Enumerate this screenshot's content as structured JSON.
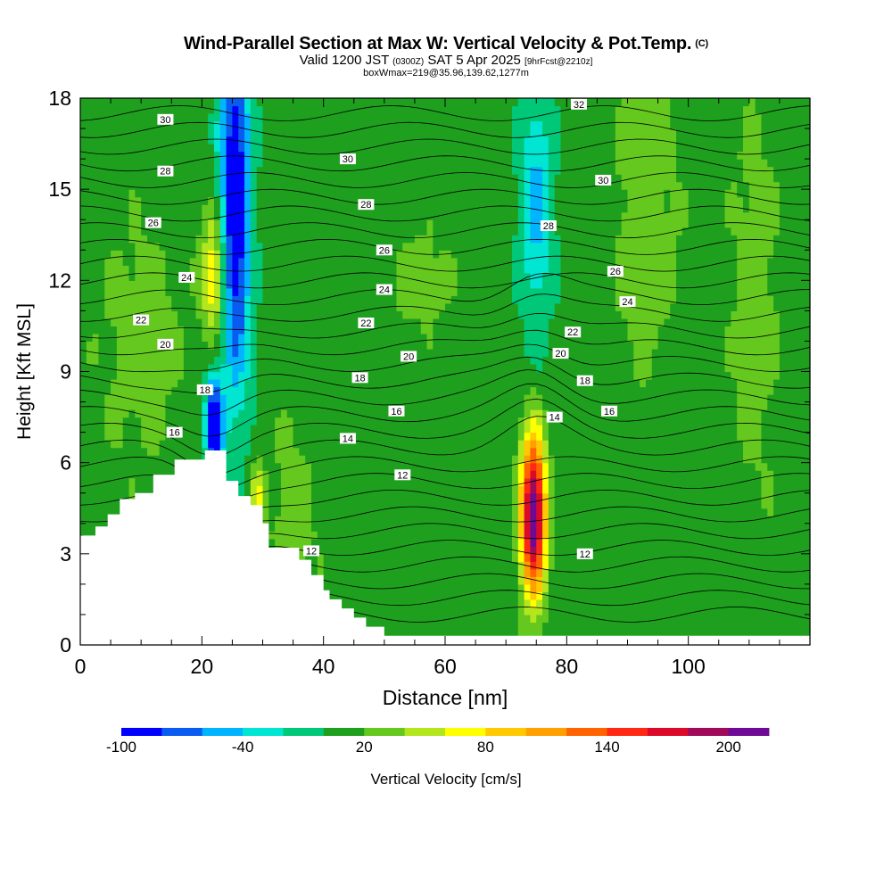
{
  "title": {
    "main": "Wind-Parallel Section at Max W: Vertical Velocity & Pot.Temp.",
    "copyright": "(C)",
    "valid_prefix": "Valid 1200 JST",
    "valid_utc": "(0300Z)",
    "valid_date": "SAT 5 Apr 2025",
    "forecast": "[9hrFcst@2210z]",
    "box_info": "boxWmax=219@35.96,139.62,1277m"
  },
  "chart_data": {
    "type": "heatmap",
    "xlabel": "Distance [nm]",
    "ylabel": "Height [Kft MSL]",
    "xlim": [
      0,
      120
    ],
    "ylim": [
      0,
      18
    ],
    "x_ticks": [
      0,
      20,
      40,
      60,
      80,
      100
    ],
    "y_ticks": [
      0,
      3,
      6,
      9,
      12,
      15,
      18
    ],
    "colorbar": {
      "title": "Vertical Velocity [cm/s]",
      "labels": [
        "-100",
        "-40",
        "20",
        "80",
        "140",
        "200"
      ],
      "label_values": [
        -100,
        -40,
        20,
        80,
        140,
        200
      ],
      "range": [
        -100,
        220
      ],
      "colors": [
        "#0000ff",
        "#0a5cf0",
        "#00b4ff",
        "#00e6d2",
        "#00c878",
        "#1ea01e",
        "#64c81e",
        "#b4e61e",
        "#ffff00",
        "#ffc800",
        "#ffa000",
        "#ff6400",
        "#ff2814",
        "#dc0a28",
        "#a00a5a",
        "#6e0a96"
      ]
    },
    "background_value": 10,
    "velocity_features": [
      {
        "x": 25.5,
        "y": 14.5,
        "sx": 1.8,
        "sy": 4.5,
        "value": -110
      },
      {
        "x": 22,
        "y": 7.2,
        "sx": 1.0,
        "sy": 1.2,
        "value": -110
      },
      {
        "x": 22,
        "y": 12.2,
        "sx": 1.4,
        "sy": 1.5,
        "value": 85
      },
      {
        "x": 74.5,
        "y": 4.3,
        "sx": 1.4,
        "sy": 1.8,
        "value": 225
      },
      {
        "x": 75,
        "y": 14.5,
        "sx": 2.0,
        "sy": 3.0,
        "value": -45
      },
      {
        "x": 93,
        "y": 14,
        "sx": 4,
        "sy": 4,
        "value": 32
      },
      {
        "x": 10,
        "y": 10,
        "sx": 5,
        "sy": 3,
        "value": 30
      },
      {
        "x": 35,
        "y": 4,
        "sx": 3,
        "sy": 2.5,
        "value": 30
      },
      {
        "x": 56,
        "y": 12,
        "sx": 4,
        "sy": 1.3,
        "value": 28
      },
      {
        "x": 111,
        "y": 11.5,
        "sx": 3,
        "sy": 5,
        "value": 30
      },
      {
        "x": 29,
        "y": 4.9,
        "sx": 0.7,
        "sy": 0.7,
        "value": 70
      }
    ],
    "terrain": [
      [
        0,
        3.6
      ],
      [
        2.5,
        3.6
      ],
      [
        2.5,
        3.9
      ],
      [
        4.5,
        3.9
      ],
      [
        4.5,
        4.3
      ],
      [
        6.5,
        4.3
      ],
      [
        6.5,
        4.8
      ],
      [
        9,
        4.8
      ],
      [
        9,
        5.0
      ],
      [
        12,
        5.0
      ],
      [
        12,
        5.6
      ],
      [
        15.5,
        5.6
      ],
      [
        15.5,
        6.1
      ],
      [
        20.5,
        6.1
      ],
      [
        20.5,
        6.4
      ],
      [
        24,
        6.4
      ],
      [
        24,
        5.4
      ],
      [
        26,
        5.4
      ],
      [
        26,
        4.9
      ],
      [
        28,
        4.9
      ],
      [
        28,
        4.6
      ],
      [
        30,
        4.6
      ],
      [
        30,
        4.0
      ],
      [
        31,
        4.0
      ],
      [
        31,
        3.2
      ],
      [
        36,
        3.2
      ],
      [
        36,
        2.8
      ],
      [
        38,
        2.8
      ],
      [
        38,
        2.3
      ],
      [
        40,
        2.3
      ],
      [
        40,
        1.8
      ],
      [
        41,
        1.8
      ],
      [
        41,
        1.5
      ],
      [
        43,
        1.5
      ],
      [
        43,
        1.2
      ],
      [
        45,
        1.2
      ],
      [
        45,
        0.9
      ],
      [
        47,
        0.9
      ],
      [
        47,
        0.6
      ],
      [
        50,
        0.6
      ],
      [
        50,
        0.3
      ],
      [
        52,
        0.3
      ],
      [
        52,
        0.3
      ],
      [
        120,
        0.3
      ]
    ],
    "theta_contour_labels": [
      {
        "x": 14,
        "y": 17.3,
        "text": "30"
      },
      {
        "x": 14,
        "y": 15.6,
        "text": "28"
      },
      {
        "x": 12,
        "y": 13.9,
        "text": "26"
      },
      {
        "x": 17.5,
        "y": 12.1,
        "text": "24"
      },
      {
        "x": 10,
        "y": 10.7,
        "text": "22"
      },
      {
        "x": 14,
        "y": 9.9,
        "text": "20"
      },
      {
        "x": 20.5,
        "y": 8.4,
        "text": "18"
      },
      {
        "x": 15.5,
        "y": 7.0,
        "text": "16"
      },
      {
        "x": 44,
        "y": 16.0,
        "text": "30"
      },
      {
        "x": 47,
        "y": 14.5,
        "text": "28"
      },
      {
        "x": 50,
        "y": 13.0,
        "text": "26"
      },
      {
        "x": 50,
        "y": 11.7,
        "text": "24"
      },
      {
        "x": 47,
        "y": 10.6,
        "text": "22"
      },
      {
        "x": 54,
        "y": 9.5,
        "text": "20"
      },
      {
        "x": 46,
        "y": 8.8,
        "text": "18"
      },
      {
        "x": 52,
        "y": 7.7,
        "text": "16"
      },
      {
        "x": 44,
        "y": 6.8,
        "text": "14"
      },
      {
        "x": 53,
        "y": 5.6,
        "text": "12"
      },
      {
        "x": 38,
        "y": 3.1,
        "text": "12"
      },
      {
        "x": 82,
        "y": 17.8,
        "text": "32"
      },
      {
        "x": 86,
        "y": 15.3,
        "text": "30"
      },
      {
        "x": 77,
        "y": 13.8,
        "text": "28"
      },
      {
        "x": 88,
        "y": 12.3,
        "text": "26"
      },
      {
        "x": 90,
        "y": 11.3,
        "text": "24"
      },
      {
        "x": 81,
        "y": 10.3,
        "text": "22"
      },
      {
        "x": 79,
        "y": 9.6,
        "text": "20"
      },
      {
        "x": 83,
        "y": 8.7,
        "text": "18"
      },
      {
        "x": 87,
        "y": 7.7,
        "text": "16"
      },
      {
        "x": 78,
        "y": 7.5,
        "text": "14"
      },
      {
        "x": 83,
        "y": 3.0,
        "text": "12"
      }
    ]
  }
}
